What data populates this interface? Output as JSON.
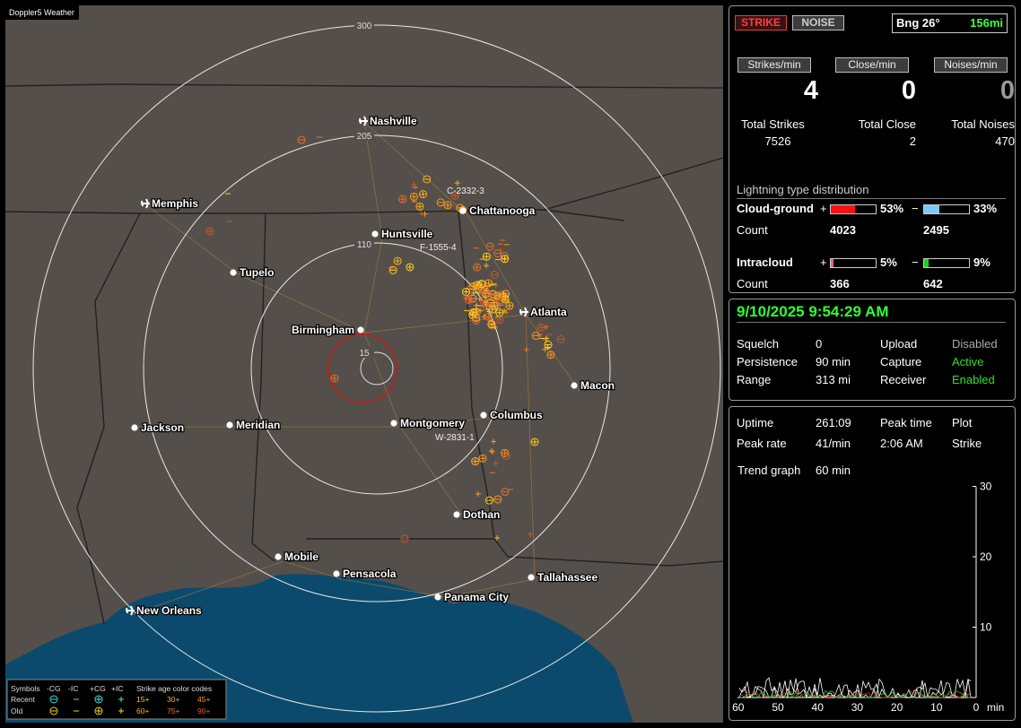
{
  "map": {
    "title": "Doppler5 Weather",
    "ring_labels": [
      300,
      205,
      110,
      15
    ],
    "cities": [
      "Nashville",
      "Memphis",
      "Chattanooga",
      "Huntsville",
      "Tupelo",
      "Birmingham",
      "Atlanta",
      "Macon",
      "Columbus",
      "Montgomery",
      "Meridian",
      "Jackson",
      "Dothan",
      "Mobile",
      "Pensacola",
      "Tallahassee",
      "Panama City",
      "New Orleans"
    ],
    "cell_labels": [
      "C-2332-3",
      "F-1555-4",
      "W-2831-1"
    ],
    "legend": {
      "symbols": "Symbols",
      "types": [
        "-CG",
        "-IC",
        "+CG",
        "+IC"
      ],
      "age_title": "Strike age color codes",
      "rows": [
        "Recent",
        "Old"
      ],
      "recent_ages": [
        "15+",
        "30+",
        "45+"
      ],
      "old_ages": [
        "60+",
        "75+",
        "90+"
      ]
    }
  },
  "header": {
    "strike": "STRIKE",
    "noise": "NOISE",
    "bearing": "Bng 26°",
    "distance": "156mi"
  },
  "rates": [
    {
      "label": "Strikes/min",
      "value": 4
    },
    {
      "label": "Close/min",
      "value": 0
    },
    {
      "label": "Noises/min",
      "value": 0
    }
  ],
  "totals": [
    {
      "label": "Total Strikes",
      "value": 7526
    },
    {
      "label": "Total Close",
      "value": 2
    },
    {
      "label": "Total Noises",
      "value": 470
    }
  ],
  "distribution": {
    "title": "Lightning type distribution",
    "rows": [
      {
        "name": "Cloud-ground",
        "plus": "+",
        "pos": {
          "value": 53,
          "label": "53%"
        },
        "minus": "−",
        "neg": {
          "value": 33,
          "label": "33%"
        },
        "count_label": "Count",
        "counts": [
          4023,
          2495
        ]
      },
      {
        "name": "Intracloud",
        "plus": "+",
        "pos": {
          "value": 5,
          "label": "5%"
        },
        "minus": "−",
        "neg": {
          "value": 9,
          "label": "9%"
        },
        "count_label": "Count",
        "counts": [
          366,
          642
        ]
      }
    ]
  },
  "status": {
    "datetime": "9/10/2025 9:54:29 AM",
    "rows": [
      [
        "Squelch",
        "0",
        "Upload",
        "Disabled"
      ],
      [
        "Persistence",
        "90 min",
        "Capture",
        "Active"
      ],
      [
        "Range",
        "313 mi",
        "Receiver",
        "Enabled"
      ]
    ]
  },
  "stats": {
    "rows": [
      [
        "Uptime",
        "261:09",
        "Peak time",
        "Plot"
      ],
      [
        "Peak rate",
        "41/min",
        "2:06 AM",
        "Strike"
      ]
    ],
    "trend_label": "Trend graph",
    "trend_span": "60 min",
    "yticks": [
      30,
      20,
      10
    ],
    "xticks": [
      60,
      50,
      40,
      30,
      20,
      10,
      0
    ],
    "xunit": "min"
  }
}
